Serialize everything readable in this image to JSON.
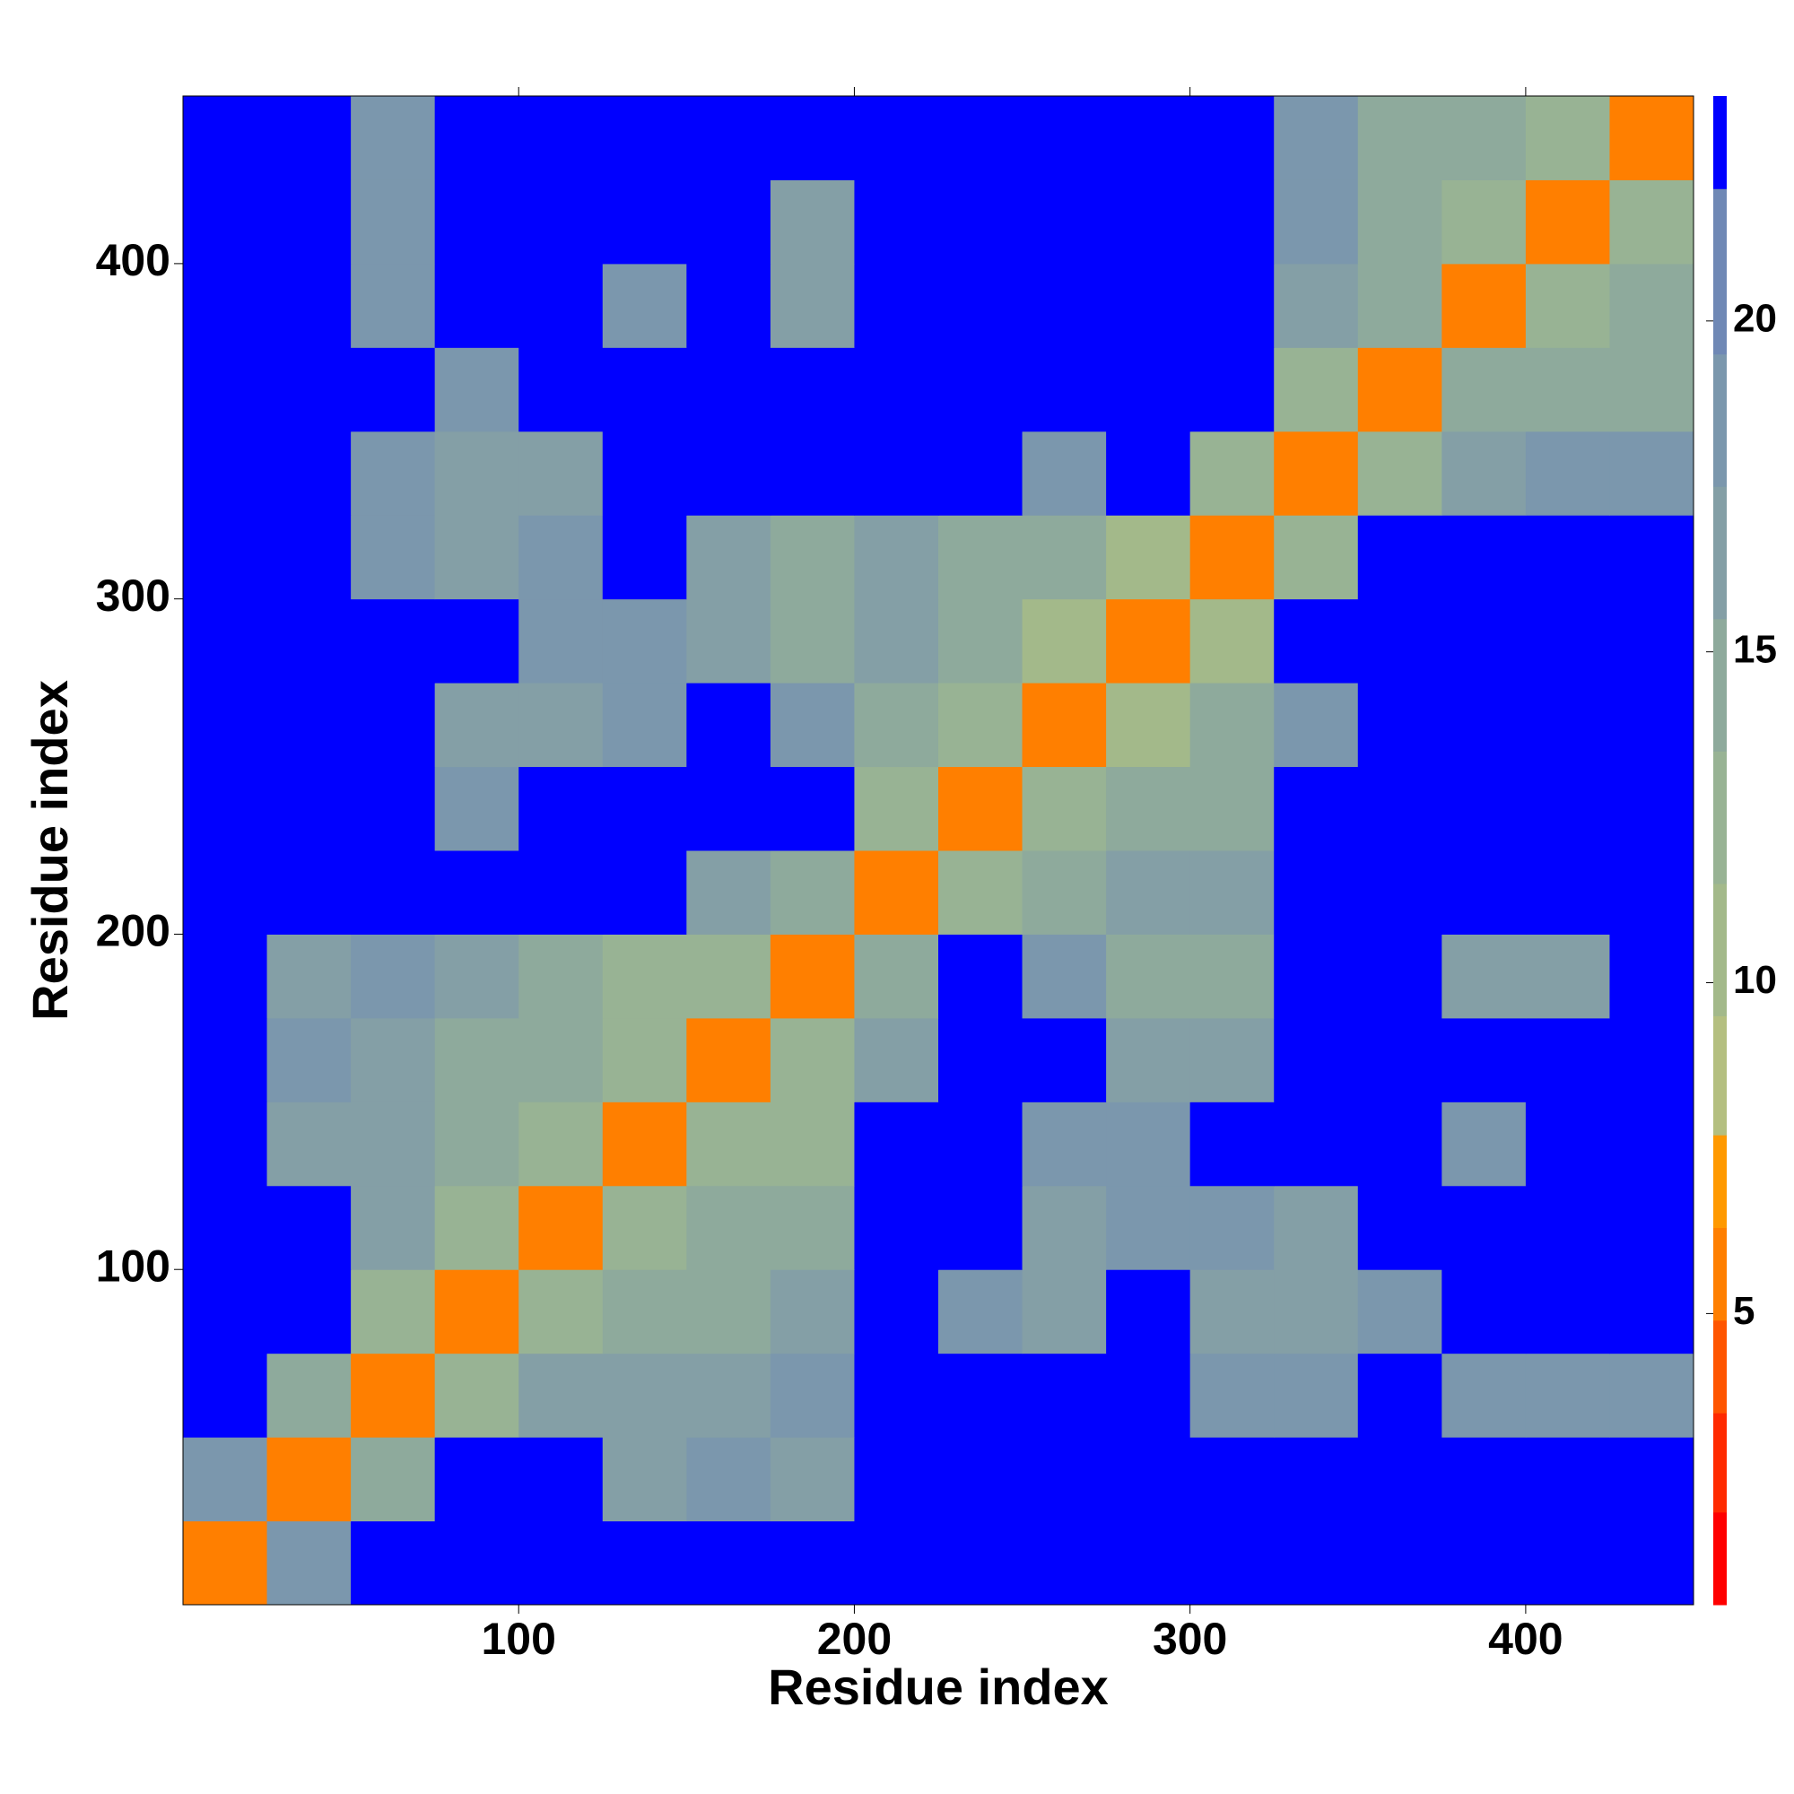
{
  "chart_data": {
    "type": "heatmap",
    "x_label": "Residue index",
    "y_label": "Residue index",
    "xlim": [
      0,
      450
    ],
    "ylim": [
      0,
      450
    ],
    "xticks": [
      100,
      200,
      300,
      400
    ],
    "yticks": [
      100,
      200,
      300,
      400
    ],
    "bins": [
      0,
      25,
      50,
      75,
      100,
      125,
      150,
      175,
      200,
      225,
      250,
      275,
      300,
      325,
      350,
      375,
      400,
      425,
      450
    ],
    "matrix": [
      [
        5,
        18,
        23,
        23,
        23,
        23,
        23,
        23,
        23,
        23,
        23,
        23,
        23,
        23,
        23,
        23,
        23,
        23
      ],
      [
        18,
        5,
        15,
        23,
        23,
        17,
        18,
        17,
        23,
        23,
        23,
        23,
        23,
        23,
        23,
        23,
        23,
        23
      ],
      [
        23,
        15,
        5,
        13,
        17,
        17,
        16,
        18,
        23,
        23,
        23,
        23,
        19,
        19,
        23,
        18,
        18,
        19
      ],
      [
        23,
        23,
        13,
        5,
        12,
        15,
        15,
        16,
        23,
        19,
        17,
        23,
        17,
        17,
        18,
        23,
        23,
        23
      ],
      [
        23,
        23,
        17,
        12,
        5,
        13,
        14,
        15,
        23,
        23,
        17,
        18,
        19,
        17,
        23,
        23,
        23,
        23
      ],
      [
        23,
        17,
        17,
        15,
        13,
        5,
        12,
        13,
        23,
        23,
        19,
        19,
        23,
        23,
        23,
        18,
        23,
        23
      ],
      [
        23,
        18,
        16,
        15,
        14,
        12,
        5,
        12,
        16,
        23,
        23,
        17,
        16,
        23,
        23,
        23,
        23,
        23
      ],
      [
        23,
        17,
        18,
        16,
        15,
        13,
        12,
        5,
        14,
        23,
        18,
        15,
        15,
        23,
        23,
        17,
        17,
        23
      ],
      [
        23,
        23,
        23,
        23,
        23,
        23,
        16,
        14,
        5,
        13,
        15,
        16,
        17,
        23,
        23,
        23,
        23,
        23
      ],
      [
        23,
        23,
        23,
        19,
        23,
        23,
        23,
        23,
        13,
        5,
        12,
        14,
        15,
        23,
        23,
        23,
        23,
        23
      ],
      [
        23,
        23,
        23,
        17,
        17,
        19,
        23,
        18,
        15,
        12,
        5,
        11,
        14,
        19,
        23,
        23,
        23,
        23
      ],
      [
        23,
        23,
        23,
        23,
        18,
        19,
        17,
        15,
        16,
        14,
        11,
        5,
        11,
        23,
        23,
        23,
        23,
        23
      ],
      [
        23,
        23,
        19,
        17,
        19,
        23,
        16,
        15,
        17,
        15,
        14,
        11,
        5,
        13,
        23,
        23,
        23,
        23
      ],
      [
        23,
        23,
        19,
        17,
        17,
        23,
        23,
        23,
        23,
        23,
        19,
        23,
        13,
        5,
        13,
        17,
        18,
        18
      ],
      [
        23,
        23,
        23,
        18,
        23,
        23,
        23,
        23,
        23,
        23,
        23,
        23,
        23,
        13,
        5,
        14,
        14,
        15
      ],
      [
        23,
        23,
        18,
        23,
        23,
        18,
        23,
        17,
        23,
        23,
        23,
        23,
        23,
        17,
        14,
        5,
        12,
        14
      ],
      [
        23,
        23,
        18,
        23,
        23,
        23,
        23,
        17,
        23,
        23,
        23,
        23,
        23,
        18,
        14,
        12,
        5,
        12
      ],
      [
        23,
        23,
        19,
        23,
        23,
        23,
        23,
        23,
        23,
        23,
        23,
        23,
        23,
        18,
        15,
        14,
        12,
        5
      ]
    ],
    "colorbar_lim": [
      0.6,
      23.4
    ],
    "colorbar_ticks": [
      5,
      10,
      15,
      20
    ],
    "colorscale": {
      "bounds": [
        0.6,
        2,
        3.5,
        4.9,
        6.3,
        7.7,
        9.5,
        11.5,
        13.5,
        15.5,
        17.5,
        19.5,
        22,
        23.4
      ],
      "colors": [
        "#ff0000",
        "#ff2a00",
        "#ff5500",
        "#ff7f00",
        "#ff9900",
        "#b4bf80",
        "#a3b98a",
        "#98b394",
        "#8eaa9c",
        "#849fa6",
        "#7b97ad",
        "#6f88b5",
        "#0000ff"
      ]
    }
  }
}
